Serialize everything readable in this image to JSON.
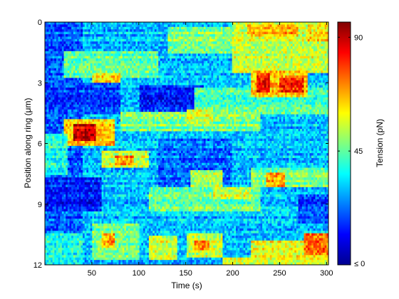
{
  "chart_data": {
    "type": "heatmap",
    "title": "",
    "xlabel": "Time (s)",
    "ylabel": "Position along ring (μm)",
    "xlim": [
      0,
      302
    ],
    "ylim": [
      0,
      12
    ],
    "y_direction": "top-to-bottom",
    "x_ticks": [
      50,
      100,
      150,
      200,
      250,
      300
    ],
    "y_ticks": [
      0,
      3,
      6,
      9,
      12
    ],
    "colormap": "jet",
    "colorbar": {
      "label": "Tension (pN)",
      "range": [
        0,
        96
      ],
      "ticks": [
        {
          "value": 90,
          "label": "90"
        },
        {
          "value": 45,
          "label": "45"
        },
        {
          "value": 0,
          "label": "≤ 0"
        }
      ]
    },
    "background_value": 30,
    "regions": [
      {
        "t": [
          0,
          40
        ],
        "p": [
          0,
          12
        ],
        "value": 20
      },
      {
        "t": [
          130,
          200
        ],
        "p": [
          0.3,
          1.5
        ],
        "value": 48
      },
      {
        "t": [
          200,
          302
        ],
        "p": [
          0,
          2.5
        ],
        "value": 55
      },
      {
        "t": [
          215,
          270
        ],
        "p": [
          0.1,
          0.7
        ],
        "value": 68
      },
      {
        "t": [
          280,
          302
        ],
        "p": [
          0.1,
          0.9
        ],
        "value": 62
      },
      {
        "t": [
          20,
          120
        ],
        "p": [
          1.5,
          2.7
        ],
        "value": 45
      },
      {
        "t": [
          50,
          80
        ],
        "p": [
          2.5,
          3.1
        ],
        "value": 62
      },
      {
        "t": [
          0,
          80
        ],
        "p": [
          3,
          4.5
        ],
        "value": 17
      },
      {
        "t": [
          100,
          170
        ],
        "p": [
          3.1,
          4.4
        ],
        "value": 14
      },
      {
        "t": [
          160,
          302
        ],
        "p": [
          3.2,
          4.6
        ],
        "value": 43
      },
      {
        "t": [
          220,
          280
        ],
        "p": [
          2.4,
          3.7
        ],
        "value": 64
      },
      {
        "t": [
          225,
          240
        ],
        "p": [
          2.5,
          3.5
        ],
        "value": 82
      },
      {
        "t": [
          250,
          275
        ],
        "p": [
          2.7,
          3.5
        ],
        "value": 80
      },
      {
        "t": [
          80,
          230
        ],
        "p": [
          4.5,
          5.4
        ],
        "value": 48
      },
      {
        "t": [
          20,
          75
        ],
        "p": [
          4.8,
          6.1
        ],
        "value": 65
      },
      {
        "t": [
          30,
          55
        ],
        "p": [
          5.1,
          5.9
        ],
        "value": 88
      },
      {
        "t": [
          150,
          180
        ],
        "p": [
          4.3,
          5.0
        ],
        "value": 56
      },
      {
        "t": [
          0,
          25
        ],
        "p": [
          5.5,
          7.5
        ],
        "value": 38
      },
      {
        "t": [
          60,
          110
        ],
        "p": [
          6.4,
          7.2
        ],
        "value": 55
      },
      {
        "t": [
          75,
          95
        ],
        "p": [
          6.6,
          7.1
        ],
        "value": 70
      },
      {
        "t": [
          120,
          200
        ],
        "p": [
          5.8,
          8.2
        ],
        "value": 22
      },
      {
        "t": [
          155,
          190
        ],
        "p": [
          7.3,
          8.3
        ],
        "value": 52
      },
      {
        "t": [
          220,
          302
        ],
        "p": [
          7.2,
          8.2
        ],
        "value": 47
      },
      {
        "t": [
          235,
          255
        ],
        "p": [
          7.5,
          8.1
        ],
        "value": 68
      },
      {
        "t": [
          0,
          60
        ],
        "p": [
          7.7,
          9.3
        ],
        "value": 14
      },
      {
        "t": [
          110,
          230
        ],
        "p": [
          8.2,
          9.4
        ],
        "value": 46
      },
      {
        "t": [
          180,
          220
        ],
        "p": [
          8.2,
          8.8
        ],
        "value": 55
      },
      {
        "t": [
          270,
          302
        ],
        "p": [
          8.5,
          10.0
        ],
        "value": 18
      },
      {
        "t": [
          0,
          40
        ],
        "p": [
          10.4,
          12
        ],
        "value": 38
      },
      {
        "t": [
          50,
          100
        ],
        "p": [
          10.0,
          11.8
        ],
        "value": 47
      },
      {
        "t": [
          60,
          75
        ],
        "p": [
          10.5,
          11.2
        ],
        "value": 68
      },
      {
        "t": [
          110,
          140
        ],
        "p": [
          10.6,
          11.8
        ],
        "value": 55
      },
      {
        "t": [
          150,
          190
        ],
        "p": [
          10.4,
          11.6
        ],
        "value": 54
      },
      {
        "t": [
          160,
          175
        ],
        "p": [
          10.8,
          11.3
        ],
        "value": 72
      },
      {
        "t": [
          190,
          240
        ],
        "p": [
          11.6,
          12
        ],
        "value": 58
      },
      {
        "t": [
          220,
          302
        ],
        "p": [
          10.8,
          12
        ],
        "value": 58
      },
      {
        "t": [
          275,
          302
        ],
        "p": [
          10.4,
          11.5
        ],
        "value": 74
      }
    ]
  }
}
